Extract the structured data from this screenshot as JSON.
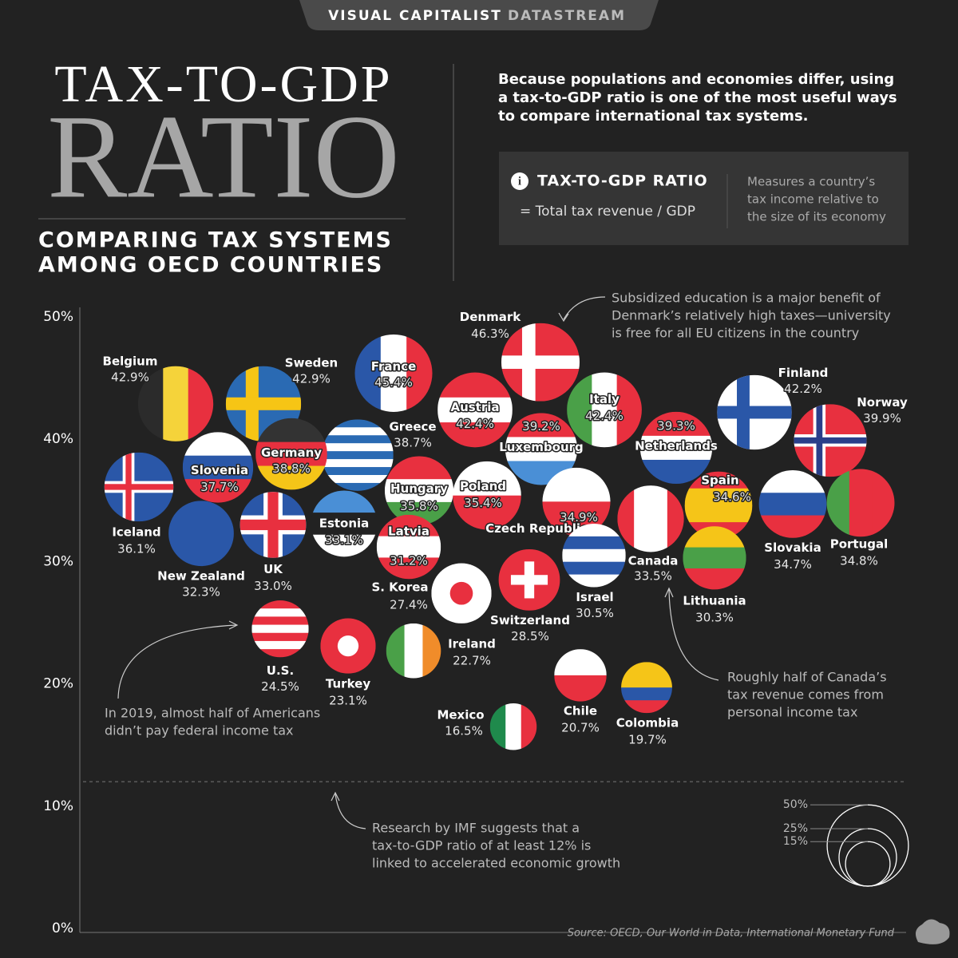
{
  "header": {
    "brand": "VISUAL CAPITALIST",
    "brand_accent": "DATASTREAM",
    "title_top": "TAX-TO-GDP",
    "title_main": "RATIO",
    "subtitle": [
      "COMPARING TAX SYSTEMS",
      "AMONG OECD COUNTRIES"
    ],
    "intro": [
      "Because populations and economies differ, using",
      "a tax-to-GDP ratio is one of the most useful ways",
      "to compare international tax systems."
    ],
    "info": {
      "heading": "TAX-TO-GDP RATIO",
      "formula": "= Total tax revenue / GDP",
      "description": [
        "Measures a country’s",
        "tax income relative to",
        "the size of its economy"
      ]
    }
  },
  "chart_data": {
    "type": "bubble",
    "categories": [
      "Belgium",
      "Sweden",
      "France",
      "Denmark",
      "Austria",
      "Italy",
      "Finland",
      "Norway",
      "Greece",
      "Luxembourg",
      "Netherlands",
      "Iceland",
      "Slovenia",
      "Germany",
      "Hungary",
      "Poland",
      "Czech Republic",
      "Spain",
      "Slovakia",
      "Portugal",
      "Canada",
      "Lithuania",
      "New Zealand",
      "UK",
      "Estonia",
      "Latvia",
      "Israel",
      "S. Korea",
      "Switzerland",
      "U.S.",
      "Turkey",
      "Ireland",
      "Chile",
      "Colombia",
      "Mexico"
    ],
    "values": [
      42.9,
      42.9,
      45.4,
      46.3,
      42.4,
      42.4,
      42.2,
      39.9,
      38.7,
      39.2,
      39.3,
      36.1,
      37.7,
      38.8,
      35.8,
      35.4,
      34.9,
      34.6,
      34.7,
      34.8,
      33.5,
      30.3,
      32.3,
      33.0,
      33.1,
      31.2,
      30.5,
      27.4,
      28.5,
      24.5,
      23.1,
      22.7,
      20.7,
      19.7,
      16.5
    ],
    "value_labels": [
      "42.9%",
      "42.9%",
      "45.4%",
      "46.3%",
      "42.4%",
      "42.4%",
      "42.2%",
      "39.9%",
      "38.7%",
      "39.2%",
      "39.3%",
      "36.1%",
      "37.7%",
      "38.8%",
      "35.8%",
      "35.4%",
      "34.9%",
      "34.6%",
      "34.7%",
      "34.8%",
      "33.5%",
      "30.3%",
      "32.3%",
      "33.0%",
      "33.1%",
      "31.2%",
      "30.5%",
      "27.4%",
      "28.5%",
      "24.5%",
      "23.1%",
      "22.7%",
      "20.7%",
      "19.7%",
      "16.5%"
    ],
    "flags": [
      {
        "pattern": "v",
        "colors": [
          "#2b2b2b",
          "#f5d33a",
          "#e8303f"
        ]
      },
      {
        "pattern": "nordic",
        "colors": [
          "#2a6ab3",
          "#f6c515"
        ]
      },
      {
        "pattern": "v",
        "colors": [
          "#2a57a8",
          "#ffffff",
          "#e8303f"
        ]
      },
      {
        "pattern": "nordic",
        "colors": [
          "#e8303f",
          "#ffffff"
        ]
      },
      {
        "pattern": "h",
        "colors": [
          "#e8303f",
          "#ffffff",
          "#e8303f"
        ]
      },
      {
        "pattern": "v",
        "colors": [
          "#4aa048",
          "#ffffff",
          "#e8303f"
        ]
      },
      {
        "pattern": "nordic",
        "colors": [
          "#ffffff",
          "#2a57a8"
        ]
      },
      {
        "pattern": "nordic",
        "colors": [
          "#e8303f",
          "#ffffff",
          "#2a3f8a"
        ]
      },
      {
        "pattern": "h",
        "colors": [
          "#2a6ab3",
          "#ffffff",
          "#2a6ab3",
          "#ffffff",
          "#2a6ab3",
          "#ffffff",
          "#2a6ab3",
          "#ffffff",
          "#2a6ab3"
        ]
      },
      {
        "pattern": "h",
        "colors": [
          "#e8303f",
          "#ffffff",
          "#4a8fd6"
        ]
      },
      {
        "pattern": "h",
        "colors": [
          "#e8303f",
          "#ffffff",
          "#2a57a8"
        ]
      },
      {
        "pattern": "nordic",
        "colors": [
          "#2a57a8",
          "#ffffff",
          "#e8303f"
        ]
      },
      {
        "pattern": "h",
        "colors": [
          "#ffffff",
          "#2a57a8",
          "#e8303f"
        ]
      },
      {
        "pattern": "h",
        "colors": [
          "#333333",
          "#e8303f",
          "#f5c518"
        ]
      },
      {
        "pattern": "h",
        "colors": [
          "#e8303f",
          "#ffffff",
          "#4aa048"
        ]
      },
      {
        "pattern": "h",
        "colors": [
          "#ffffff",
          "#e8303f"
        ]
      },
      {
        "pattern": "h",
        "colors": [
          "#ffffff",
          "#e8303f"
        ]
      },
      {
        "pattern": "h",
        "colors": [
          "#e8303f",
          "#f5c518",
          "#f5c518",
          "#e8303f"
        ]
      },
      {
        "pattern": "h",
        "colors": [
          "#ffffff",
          "#2a57a8",
          "#e8303f"
        ]
      },
      {
        "pattern": "v",
        "colors": [
          "#4aa048",
          "#e8303f",
          "#e8303f"
        ]
      },
      {
        "pattern": "v",
        "colors": [
          "#e8303f",
          "#ffffff",
          "#ffffff",
          "#e8303f"
        ]
      },
      {
        "pattern": "h",
        "colors": [
          "#f5c518",
          "#4aa048",
          "#e8303f"
        ]
      },
      {
        "pattern": "h",
        "colors": [
          "#2a57a8"
        ]
      },
      {
        "pattern": "plus",
        "colors": [
          "#2a57a8",
          "#e8303f"
        ]
      },
      {
        "pattern": "h",
        "colors": [
          "#4a8fd6",
          "#222222",
          "#ffffff"
        ]
      },
      {
        "pattern": "h",
        "colors": [
          "#e8303f",
          "#ffffff",
          "#e8303f"
        ]
      },
      {
        "pattern": "h",
        "colors": [
          "#ffffff",
          "#2a57a8",
          "#ffffff",
          "#2a57a8",
          "#ffffff"
        ]
      },
      {
        "pattern": "disc",
        "colors": [
          "#ffffff",
          "#e8303f"
        ]
      },
      {
        "pattern": "plus",
        "colors": [
          "#e8303f",
          "#ffffff"
        ]
      },
      {
        "pattern": "h",
        "colors": [
          "#e8303f",
          "#ffffff",
          "#e8303f",
          "#ffffff",
          "#e8303f",
          "#ffffff",
          "#e8303f"
        ]
      },
      {
        "pattern": "disc",
        "colors": [
          "#e8303f",
          "#ffffff"
        ]
      },
      {
        "pattern": "v",
        "colors": [
          "#4aa048",
          "#ffffff",
          "#f08c2a"
        ]
      },
      {
        "pattern": "h",
        "colors": [
          "#ffffff",
          "#e8303f"
        ]
      },
      {
        "pattern": "h",
        "colors": [
          "#f5c518",
          "#f5c518",
          "#2a57a8",
          "#e8303f"
        ]
      },
      {
        "pattern": "v",
        "colors": [
          "#1f8a4c",
          "#ffffff",
          "#e8303f"
        ]
      }
    ],
    "ylim": [
      0,
      50
    ],
    "yticks": [
      {
        "value": 0,
        "label": "0%"
      },
      {
        "value": 10,
        "label": "10%"
      },
      {
        "value": 20,
        "label": "20%"
      },
      {
        "value": 30,
        "label": "30%"
      },
      {
        "value": 40,
        "label": "40%"
      },
      {
        "value": 50,
        "label": "50%"
      }
    ],
    "reference_line": 12,
    "size_legend": [
      {
        "value": 50,
        "label": "50%"
      },
      {
        "value": 25,
        "label": "25%"
      },
      {
        "value": 15,
        "label": "15%"
      }
    ],
    "annotations": [
      {
        "lines": [
          "Subsidized education is a major benefit of",
          "Denmark’s relatively high taxes—university",
          "is free for all EU citizens in the country"
        ]
      },
      {
        "lines": [
          "In 2019, almost half of Americans",
          "didn’t pay federal income tax"
        ]
      },
      {
        "lines": [
          "Roughly half of Canada’s",
          "tax revenue comes from",
          "personal income tax"
        ]
      },
      {
        "lines": [
          "Research by IMF suggests that a",
          "tax-to-GDP ratio of at least 12% is",
          "linked to accelerated economic growth"
        ]
      }
    ],
    "source": "Source: OECD, Our World in Data, International Monetary Fund"
  }
}
